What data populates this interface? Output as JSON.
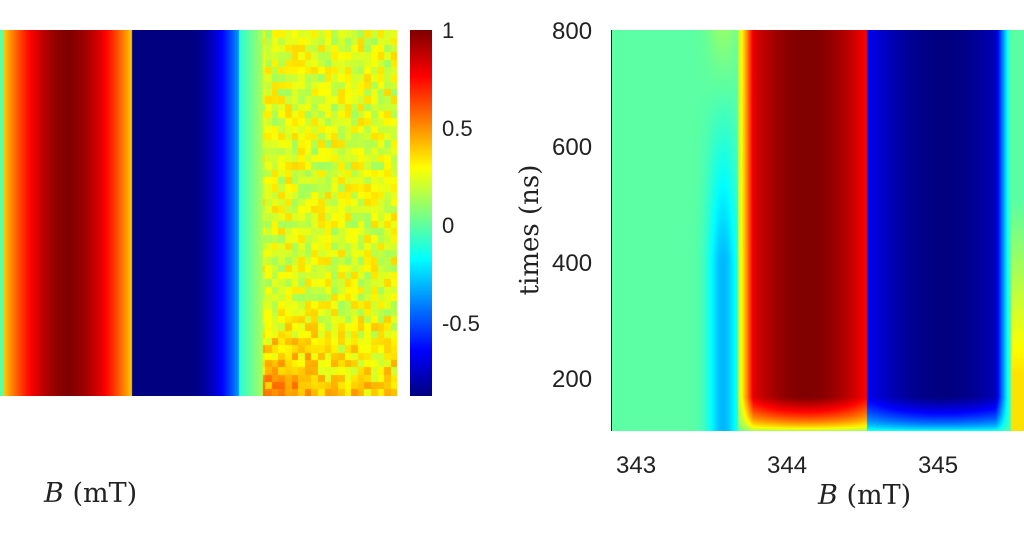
{
  "chart_data": [
    {
      "type": "heatmap",
      "panel": "left",
      "xlabel_var": "B",
      "xlabel_unit": "(mT)",
      "colormap": "jet",
      "colorbar": {
        "ticks": [
          "1",
          "0.5",
          "0",
          "-0.5"
        ],
        "range": [
          -0.87,
          1
        ]
      },
      "bands": [
        {
          "value": 1,
          "label": "positive (red)"
        },
        {
          "value": -0.87,
          "label": "negative (blue)"
        },
        {
          "value": 0.3,
          "label": "noisy yellow-green"
        }
      ]
    },
    {
      "type": "heatmap",
      "panel": "right",
      "xlabel_var": "B",
      "xlabel_unit": "(mT)",
      "ylabel": "times (ns)",
      "xticks": [
        "343",
        "344",
        "345"
      ],
      "yticks": [
        "800",
        "600",
        "400",
        "200"
      ],
      "xlim": [
        342.82,
        345.54
      ],
      "ylim": [
        100,
        800
      ],
      "colormap": "jet",
      "peak": {
        "B": 344.1,
        "value": 1
      },
      "trough": {
        "B": 345.0,
        "value": -0.87
      },
      "zero_crossing_B": 344.5
    }
  ]
}
